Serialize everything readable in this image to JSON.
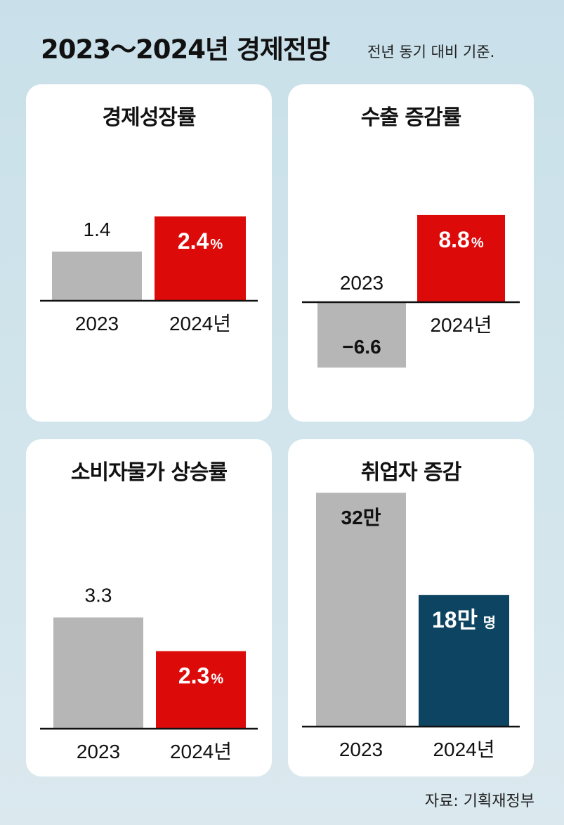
{
  "header": {
    "title": "2023～2024년 경제전망",
    "subtitle": "전년 동기 대비 기준."
  },
  "source": "자료: 기획재정부",
  "colors": {
    "prev": "#b6b6b6",
    "red": "#dd0a0a",
    "navy": "#0d4461",
    "axis": "#111111"
  },
  "chart_data": [
    {
      "type": "bar",
      "title": "경제성장률",
      "categories": [
        "2023",
        "2024년"
      ],
      "values": [
        1.4,
        2.4
      ],
      "value_labels": [
        "1.4",
        "2.4"
      ],
      "unit": "%",
      "colors": [
        "#b6b6b6",
        "#dd0a0a"
      ]
    },
    {
      "type": "bar",
      "title": "수출 증감률",
      "categories": [
        "2023",
        "2024년"
      ],
      "values": [
        -6.6,
        8.8
      ],
      "value_labels": [
        "−6.6",
        "8.8"
      ],
      "unit": "%",
      "colors": [
        "#b6b6b6",
        "#dd0a0a"
      ]
    },
    {
      "type": "bar",
      "title": "소비자물가 상승률",
      "categories": [
        "2023",
        "2024년"
      ],
      "values": [
        3.3,
        2.3
      ],
      "value_labels": [
        "3.3",
        "2.3"
      ],
      "unit": "%",
      "colors": [
        "#b6b6b6",
        "#dd0a0a"
      ]
    },
    {
      "type": "bar",
      "title": "취업자 증감",
      "categories": [
        "2023",
        "2024년"
      ],
      "values": [
        32,
        18
      ],
      "value_labels": [
        "32만",
        "18만"
      ],
      "unit": "명",
      "colors": [
        "#b6b6b6",
        "#0d4461"
      ]
    }
  ]
}
